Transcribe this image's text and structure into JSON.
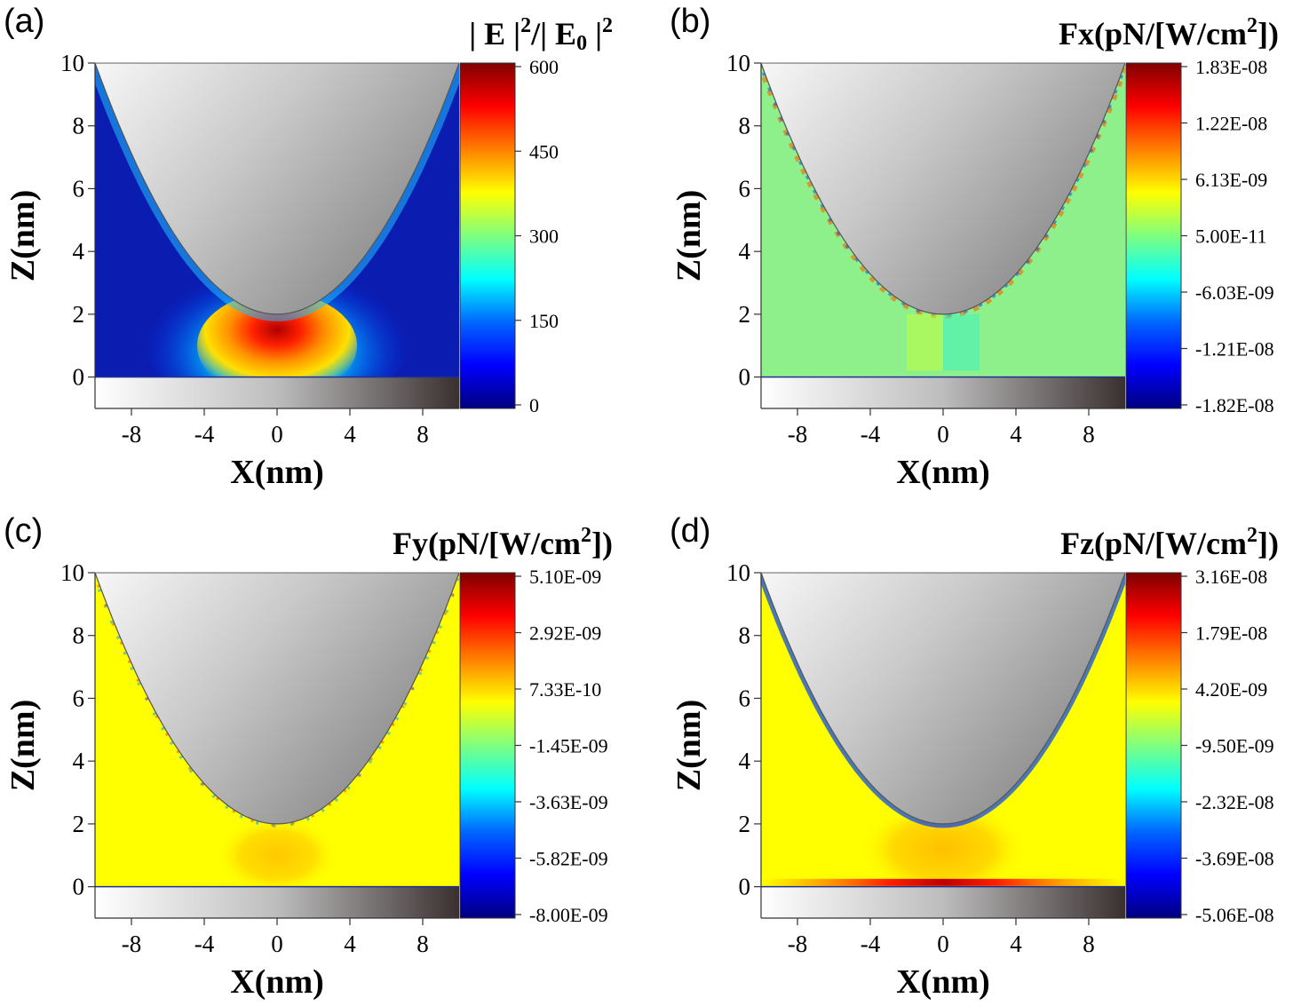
{
  "chart_data": [
    {
      "type": "heatmap",
      "panel_label": "(a)",
      "title_parts": [
        "| E |",
        "2",
        "/| E",
        "0",
        " |",
        "2"
      ],
      "xlabel": "X(nm)",
      "ylabel": "Z(nm)",
      "xlim": [
        -10,
        10
      ],
      "ylim": [
        -1,
        10
      ],
      "xticks": [
        "-8",
        "-4",
        "0",
        "4",
        "8"
      ],
      "yticks": [
        "0",
        "2",
        "4",
        "6",
        "8",
        "10"
      ],
      "colorbar_ticks": [
        "600",
        "450",
        "300",
        "150",
        "0"
      ],
      "background_color": "#0a1db0",
      "hotspot": "red field maximum below tip apex near x=0, z=1.5"
    },
    {
      "type": "heatmap",
      "panel_label": "(b)",
      "title_parts": [
        "Fx(pN/[W/cm",
        "2",
        "])"
      ],
      "xlabel": "X(nm)",
      "ylabel": "Z(nm)",
      "xlim": [
        -10,
        10
      ],
      "ylim": [
        -1,
        10
      ],
      "xticks": [
        "-8",
        "-4",
        "0",
        "4",
        "8"
      ],
      "yticks": [
        "0",
        "2",
        "4",
        "6",
        "8",
        "10"
      ],
      "colorbar_ticks": [
        "1.83E-08",
        "1.22E-08",
        "6.13E-09",
        "5.00E-11",
        "-6.03E-09",
        "-1.21E-08",
        "-1.82E-08"
      ],
      "background_color": "#8ef08a"
    },
    {
      "type": "heatmap",
      "panel_label": "(c)",
      "title_parts": [
        "Fy(pN/[W/cm",
        "2",
        "])"
      ],
      "xlabel": "X(nm)",
      "ylabel": "Z(nm)",
      "xlim": [
        -10,
        10
      ],
      "ylim": [
        -1,
        10
      ],
      "xticks": [
        "-8",
        "-4",
        "0",
        "4",
        "8"
      ],
      "yticks": [
        "0",
        "2",
        "4",
        "6",
        "8",
        "10"
      ],
      "colorbar_ticks": [
        "5.10E-09",
        "2.92E-09",
        "7.33E-10",
        "-1.45E-09",
        "-3.63E-09",
        "-5.82E-09",
        "-8.00E-09"
      ],
      "background_color": "#ffff00"
    },
    {
      "type": "heatmap",
      "panel_label": "(d)",
      "title_parts": [
        "Fz(pN/[W/cm",
        "2",
        "])"
      ],
      "xlabel": "X(nm)",
      "ylabel": "Z(nm)",
      "xlim": [
        -10,
        10
      ],
      "ylim": [
        -1,
        10
      ],
      "xticks": [
        "-8",
        "-4",
        "0",
        "4",
        "8"
      ],
      "yticks": [
        "0",
        "2",
        "4",
        "6",
        "8",
        "10"
      ],
      "colorbar_ticks": [
        "3.16E-08",
        "1.79E-08",
        "4.20E-09",
        "-9.50E-09",
        "-2.32E-08",
        "-3.69E-08",
        "-5.06E-08"
      ],
      "background_color": "#ffff00"
    }
  ],
  "colors": {
    "jet": [
      "#00007f",
      "#0000ff",
      "#0080ff",
      "#00ffff",
      "#80ff80",
      "#ffff00",
      "#ff8000",
      "#ff0000",
      "#7f0000"
    ],
    "tip_light": "#f4f4f4",
    "tip_dark": "#8a8a8a",
    "substrate_dark": "#3a3030"
  }
}
